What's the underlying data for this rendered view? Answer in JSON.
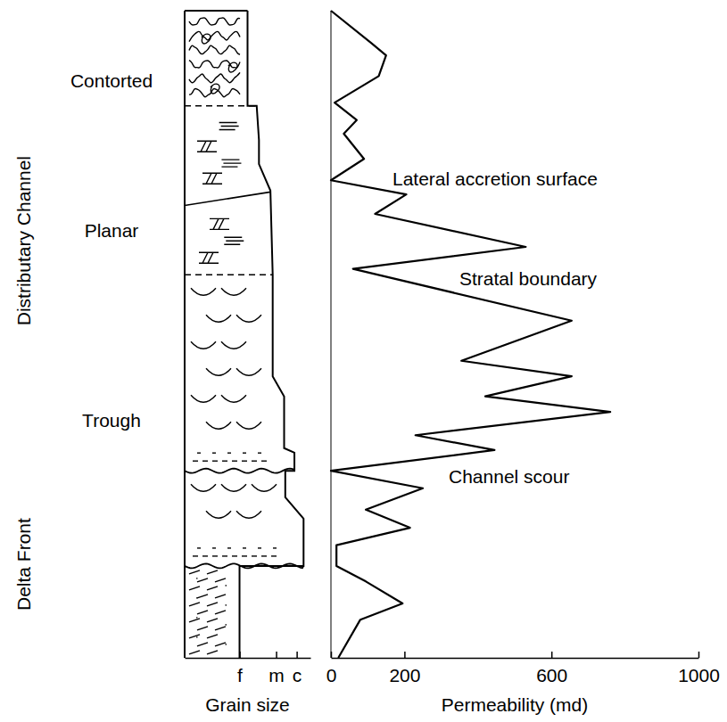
{
  "chart_data": [
    {
      "type": "lithology",
      "xlabel": "Grain size",
      "xlim": [
        0,
        110
      ],
      "xticks": [
        {
          "value": 48,
          "label": "f"
        },
        {
          "value": 80,
          "label": "m"
        },
        {
          "value": 98,
          "label": "c"
        }
      ],
      "ylim": [
        0,
        100
      ],
      "tick_labels": "x",
      "color": "#000000",
      "height": [
        100,
        85.3,
        85.3,
        80.0,
        76.3,
        72.2,
        59.2,
        43.5,
        40.4,
        32.4,
        31.7,
        28.9,
        28.9,
        24.8,
        21.5,
        14.2,
        14.2,
        0
      ],
      "grain_size": [
        55,
        55,
        63,
        65,
        65,
        75,
        77,
        77,
        87,
        87,
        96,
        96,
        88,
        88,
        104,
        104,
        48,
        48
      ],
      "facies": [
        {
          "label": "Contorted",
          "top": 100,
          "base": 85.3
        },
        {
          "label": "Planar",
          "top": 85.3,
          "base": 59.2
        },
        {
          "label": "Trough",
          "top": 59.2,
          "base": 28.9
        }
      ],
      "environments": [
        {
          "label": "Distributary Channel",
          "top": 100,
          "base": 28.9
        },
        {
          "label": "Delta Front",
          "top": 28.9,
          "base": 0
        }
      ]
    },
    {
      "type": "line",
      "xlabel": "Permeability (md)",
      "xlim": [
        0,
        1000
      ],
      "xticks": [
        0,
        200,
        600,
        1000
      ],
      "ylim": [
        0,
        100
      ],
      "tick_labels": "x",
      "color": "#000000",
      "x": [
        0,
        110,
        150,
        130,
        10,
        70,
        35,
        90,
        0,
        205,
        120,
        530,
        60,
        655,
        355,
        655,
        420,
        760,
        230,
        445,
        0,
        250,
        95,
        215,
        15,
        15,
        95,
        195,
        80,
        20
      ],
      "y": [
        100,
        95.0,
        93.1,
        89.9,
        85.8,
        83.1,
        81.0,
        77.1,
        73.8,
        71.6,
        68.6,
        63.5,
        60.1,
        52.1,
        45.9,
        43.5,
        40.4,
        38.0,
        34.4,
        32.1,
        28.9,
        26.2,
        22.9,
        20.1,
        17.4,
        14.2,
        11.8,
        8.4,
        5.9,
        0
      ],
      "annotations": [
        {
          "text": "Lateral accretion surface",
          "y": 73.8
        },
        {
          "text": "Stratal boundary",
          "y": 60.1
        },
        {
          "text": "Channel scour",
          "y": 28.9
        }
      ]
    }
  ]
}
